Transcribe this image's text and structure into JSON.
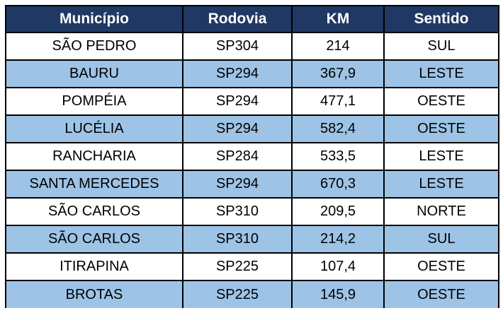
{
  "table": {
    "columns": [
      "Município",
      "Rodovia",
      "KM",
      "Sentido"
    ],
    "rows": [
      [
        "SÃO PEDRO",
        "SP304",
        "214",
        "SUL"
      ],
      [
        "BAURU",
        "SP294",
        "367,9",
        "LESTE"
      ],
      [
        "POMPÉIA",
        "SP294",
        "477,1",
        "OESTE"
      ],
      [
        "LUCÉLIA",
        "SP294",
        "582,4",
        "OESTE"
      ],
      [
        "RANCHARIA",
        "SP284",
        "533,5",
        "LESTE"
      ],
      [
        "SANTA MERCEDES",
        "SP294",
        "670,3",
        "LESTE"
      ],
      [
        "SÃO CARLOS",
        "SP310",
        "209,5",
        "NORTE"
      ],
      [
        "SÃO CARLOS",
        "SP310",
        "214,2",
        "SUL"
      ],
      [
        "ITIRAPINA",
        "SP225",
        "107,4",
        "OESTE"
      ],
      [
        "BROTAS",
        "SP225",
        "145,9",
        "OESTE"
      ]
    ],
    "colors": {
      "header_bg": "#1F3864",
      "header_text": "#FFFFFF",
      "row_bg": "#FFFFFF",
      "row_alt_bg": "#9DC3E6",
      "border": "#000000",
      "text": "#000000"
    }
  }
}
